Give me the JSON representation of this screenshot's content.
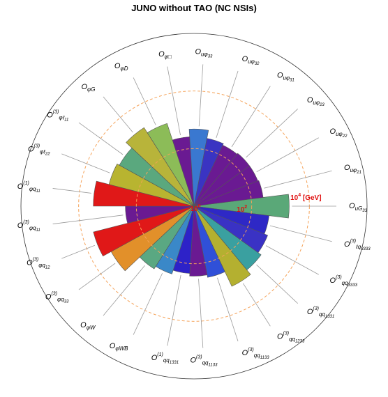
{
  "chart_data": {
    "type": "polar-bar",
    "title": "JUNO without TAO (NC NSIs)",
    "radial_axis": {
      "scale": "log",
      "tick_labels": [
        {
          "base": "10",
          "exp": "0",
          "value": 1
        },
        {
          "base": "10",
          "exp": "2",
          "value": 100
        },
        {
          "base": "10",
          "exp": "4",
          "unit": "[GeV]",
          "value": 10000
        }
      ],
      "max_value": 1000000
    },
    "sectors": [
      {
        "label_main": "O",
        "label_sub": "uG",
        "label_sub2": "33",
        "label_sup": "",
        "value": 2000,
        "color": "#5aa878"
      },
      {
        "label_main": "O",
        "label_sub": "ℓq",
        "label_sub2": "3333",
        "label_sup": "(3)",
        "value": 420,
        "color": "#2e28c6"
      },
      {
        "label_main": "O",
        "label_sub": "qq",
        "label_sub2": "3333",
        "label_sup": "(3)",
        "value": 560,
        "color": "#3a32c4"
      },
      {
        "label_main": "O",
        "label_sub": "qq",
        "label_sub2": "1331",
        "label_sup": "(3)",
        "value": 750,
        "color": "#3aa0a0"
      },
      {
        "label_main": "O",
        "label_sub": "qq",
        "label_sub2": "1233",
        "label_sup": "(3)",
        "value": 1200,
        "color": "#b4b030"
      },
      {
        "label_main": "O",
        "label_sub": "qq",
        "label_sub2": "1133",
        "label_sup": "(3)",
        "value": 330,
        "color": "#3050d8"
      },
      {
        "label_main": "O",
        "label_sub": "qq",
        "label_sub2": "1133",
        "label_sup": "(3)",
        "value": 270,
        "color": "#6a1a92"
      },
      {
        "label_main": "O",
        "label_sub": "qq",
        "label_sub2": "1331",
        "label_sup": "(1)",
        "value": 220,
        "color": "#2d22c8"
      },
      {
        "label_main": "O",
        "label_sub": "φWB",
        "label_sub2": "",
        "label_sup": "",
        "value": 300,
        "color": "#3a88c8"
      },
      {
        "label_main": "O",
        "label_sub": "φW",
        "label_sub2": "",
        "label_sup": "",
        "value": 380,
        "color": "#5aa882"
      },
      {
        "label_main": "O",
        "label_sub": "φq",
        "label_sub2": "33",
        "label_sup": "(3)",
        "value": 1900,
        "color": "#e2902a"
      },
      {
        "label_main": "O",
        "label_sub": "φq",
        "label_sub2": "12",
        "label_sup": "(3)",
        "value": 4000,
        "color": "#e01818"
      },
      {
        "label_main": "O",
        "label_sub": "φq",
        "label_sub2": "11",
        "label_sup": "(3)",
        "value": 240,
        "color": "#6a1a92"
      },
      {
        "label_main": "O",
        "label_sub": "φq",
        "label_sub2": "11",
        "label_sup": "(1)",
        "value": 3100,
        "color": "#e01818"
      },
      {
        "label_main": "O",
        "label_sub": "φℓ",
        "label_sub2": "22",
        "label_sup": "(3)",
        "value": 1100,
        "color": "#b8b430"
      },
      {
        "label_main": "O",
        "label_sub": "φℓ",
        "label_sub2": "11",
        "label_sup": "(3)",
        "value": 900,
        "color": "#5aa87e"
      },
      {
        "label_main": "O",
        "label_sub": "φG",
        "label_sub2": "",
        "label_sup": "",
        "value": 1700,
        "color": "#b8b43a"
      },
      {
        "label_main": "O",
        "label_sub": "φD",
        "label_sub2": "",
        "label_sup": "",
        "value": 1050,
        "color": "#8cbc58"
      },
      {
        "label_main": "O",
        "label_sub": "φ□",
        "label_sub2": "",
        "label_sup": "",
        "value": 260,
        "color": "#6a1a92"
      },
      {
        "label_main": "O",
        "label_sub": "uφ",
        "label_sub2": "33",
        "label_sup": "",
        "value": 480,
        "color": "#3a78d0"
      },
      {
        "label_main": "O",
        "label_sub": "uφ",
        "label_sub2": "32",
        "label_sup": "",
        "value": 250,
        "color": "#3a34c2"
      },
      {
        "label_main": "O",
        "label_sub": "uφ",
        "label_sub2": "31",
        "label_sup": "",
        "value": 220,
        "color": "#6a1a92"
      },
      {
        "label_main": "O",
        "label_sub": "uφ",
        "label_sub2": "23",
        "label_sup": "",
        "value": 240,
        "color": "#6a1a92"
      },
      {
        "label_main": "O",
        "label_sub": "uφ",
        "label_sub2": "22",
        "label_sup": "",
        "value": 240,
        "color": "#6a1a92"
      },
      {
        "label_main": "O",
        "label_sub": "uφ",
        "label_sub2": "21",
        "label_sup": "",
        "value": 260,
        "color": "#6a1a92"
      }
    ]
  }
}
